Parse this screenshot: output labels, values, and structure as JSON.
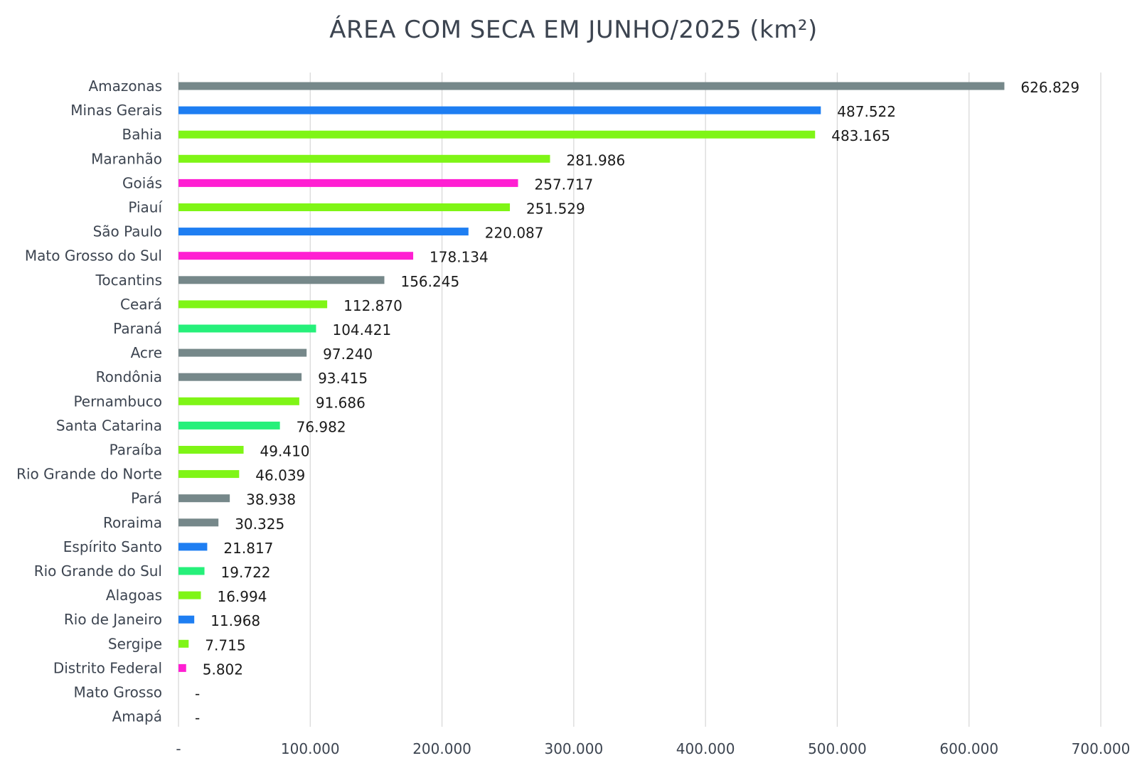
{
  "chart_data": {
    "type": "bar",
    "orientation": "horizontal",
    "title": "ÁREA COM SECA EM JUNHO/2025 (km²)",
    "xlabel": "",
    "ylabel": "",
    "xlim": [
      0,
      700000
    ],
    "x_ticks": [
      0,
      100000,
      200000,
      300000,
      400000,
      500000,
      600000,
      700000
    ],
    "x_tick_labels": [
      "-",
      "100.000",
      "200.000",
      "300.000",
      "400.000",
      "500.000",
      "600.000",
      "700.000"
    ],
    "grid": "vertical",
    "legend": "none",
    "categories": [
      "Amazonas",
      "Minas Gerais",
      "Bahia",
      "Maranhão",
      "Goiás",
      "Piauí",
      "São Paulo",
      "Mato Grosso do Sul",
      "Tocantins",
      "Ceará",
      "Paraná",
      "Acre",
      "Rondônia",
      "Pernambuco",
      "Santa Catarina",
      "Paraíba",
      "Rio Grande do Norte",
      "Pará",
      "Roraima",
      "Espírito Santo",
      "Rio Grande do Sul",
      "Alagoas",
      "Rio de Janeiro",
      "Sergipe",
      "Distrito Federal",
      "Mato Grosso",
      "Amapá"
    ],
    "values": [
      626829,
      487522,
      483165,
      281986,
      257717,
      251529,
      220087,
      178134,
      156245,
      112870,
      104421,
      97240,
      93415,
      91686,
      76982,
      49410,
      46039,
      38938,
      30325,
      21817,
      19722,
      16994,
      11968,
      7715,
      5802,
      0,
      0
    ],
    "value_labels": [
      "626.829",
      "487.522",
      "483.165",
      "281.986",
      "257.717",
      "251.529",
      "220.087",
      "178.134",
      "156.245",
      "112.870",
      "104.421",
      "97.240",
      "93.415",
      "91.686",
      "76.982",
      "49.410",
      "46.039",
      "38.938",
      "30.325",
      "21.817",
      "19.722",
      "16.994",
      "11.968",
      "7.715",
      "5.802",
      "-",
      "-"
    ],
    "bar_colors": [
      "#76888a",
      "#1e7ef2",
      "#7ff516",
      "#7ff516",
      "#ff1fd2",
      "#7ff516",
      "#1e7ef2",
      "#ff1fd2",
      "#76888a",
      "#7ff516",
      "#26f07a",
      "#76888a",
      "#76888a",
      "#7ff516",
      "#26f07a",
      "#7ff516",
      "#7ff516",
      "#76888a",
      "#76888a",
      "#1e7ef2",
      "#26f07a",
      "#7ff516",
      "#1e7ef2",
      "#7ff516",
      "#ff1fd2",
      "#76888a",
      "#76888a"
    ],
    "gridline_color": "#d9d9d9"
  }
}
